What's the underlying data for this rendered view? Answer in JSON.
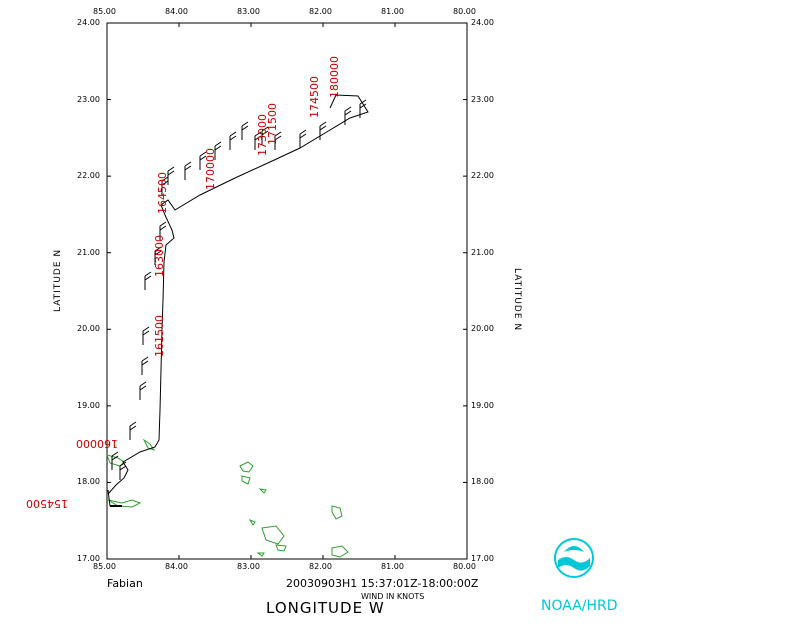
{
  "map": {
    "lon_ticks": [
      "85.00",
      "84.00",
      "83.00",
      "82.00",
      "81.00",
      "80.00"
    ],
    "lat_ticks": [
      "24.00",
      "23.00",
      "22.00",
      "21.00",
      "20.00",
      "19.00",
      "18.00",
      "17.00"
    ],
    "lon_range": [
      85.0,
      80.0
    ],
    "lat_range": [
      17.0,
      24.0
    ],
    "x_axis_title": "LONGITUDE   W",
    "y_axis_title_left": "LATITUDE   N",
    "y_axis_title_right": "LATITUDE   N",
    "storm_name": "Fabian",
    "datetime_range": "20030903H1 15:37:01Z-18:00:00Z",
    "units_label": "WIND IN KNOTS",
    "agency_label": "NOAA/HRD",
    "time_labels": [
      "154500",
      "160000",
      "161500",
      "163000",
      "164500",
      "170000",
      "173000",
      "171500",
      "174500",
      "180000"
    ],
    "colors": {
      "track": "#000000",
      "time_labels": "#cc0000",
      "land": "#2ea02e",
      "logo": "#00c8d8"
    }
  }
}
